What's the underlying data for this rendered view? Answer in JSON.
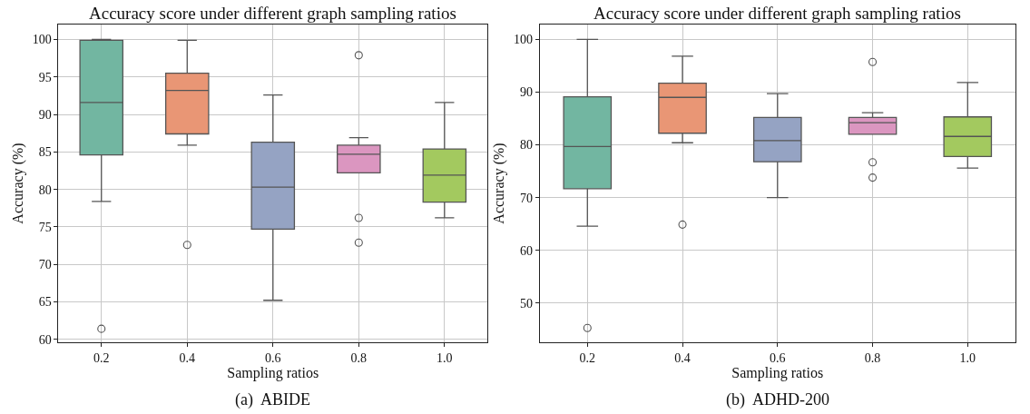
{
  "chart_data": [
    {
      "type": "box",
      "title": "Accuracy score under different graph sampling ratios",
      "xlabel": "Sampling ratios",
      "ylabel": "Accuracy (%)",
      "annotations": [
        "(a)  ABIDE"
      ],
      "categories": [
        "0.2",
        "0.4",
        "0.6",
        "0.8",
        "1.0"
      ],
      "colors": [
        "#72b6a1",
        "#e99675",
        "#95a3c3",
        "#db96c0",
        "#a3c95f"
      ],
      "boxes": [
        {
          "low": 78.4,
          "q1": 84.6,
          "median": 91.6,
          "q3": 99.9,
          "high": 100,
          "outliers": [
            61.4
          ]
        },
        {
          "low": 85.9,
          "q1": 87.4,
          "median": 93.2,
          "q3": 95.5,
          "high": 99.9,
          "outliers": [
            72.6
          ]
        },
        {
          "low": 65.2,
          "q1": 74.7,
          "median": 80.3,
          "q3": 86.3,
          "high": 92.6
        },
        {
          "low": 82.2,
          "q1": 82.2,
          "median": 84.7,
          "q3": 85.9,
          "high": 86.9,
          "outliers": [
            97.9,
            76.2,
            72.9
          ]
        },
        {
          "low": 76.2,
          "q1": 78.3,
          "median": 81.9,
          "q3": 85.4,
          "high": 91.6
        }
      ],
      "ylim": [
        59.6,
        102
      ],
      "yticks": [
        60,
        65,
        70,
        75,
        80,
        85,
        90,
        95,
        100
      ],
      "grid": true,
      "marker": "circle"
    },
    {
      "type": "box",
      "title": "Accuracy score under different graph sampling ratios",
      "xlabel": "Sampling ratios",
      "ylabel": "Accuracy (%)",
      "annotations": [
        "(b)  ADHD-200"
      ],
      "categories": [
        "0.2",
        "0.4",
        "0.6",
        "0.8",
        "1.0"
      ],
      "colors": [
        "#72b6a1",
        "#e99675",
        "#95a3c3",
        "#db96c0",
        "#a3c95f"
      ],
      "boxes": [
        {
          "low": 64.6,
          "q1": 71.7,
          "median": 79.7,
          "q3": 89.1,
          "high": 100,
          "outliers": [
            45.3
          ]
        },
        {
          "low": 80.4,
          "q1": 82.2,
          "median": 89.0,
          "q3": 91.7,
          "high": 96.8,
          "outliers": [
            64.9
          ]
        },
        {
          "low": 70.0,
          "q1": 76.8,
          "median": 80.8,
          "q3": 85.2,
          "high": 89.7
        },
        {
          "low": 82.0,
          "q1": 82.0,
          "median": 84.2,
          "q3": 85.2,
          "high": 86.1,
          "outliers": [
            95.7,
            76.7,
            73.8
          ]
        },
        {
          "low": 75.6,
          "q1": 77.8,
          "median": 81.6,
          "q3": 85.3,
          "high": 91.8
        }
      ],
      "ylim": [
        42.6,
        102.8
      ],
      "yticks": [
        50,
        60,
        70,
        80,
        90,
        100
      ],
      "grid": true,
      "marker": "circle"
    }
  ]
}
